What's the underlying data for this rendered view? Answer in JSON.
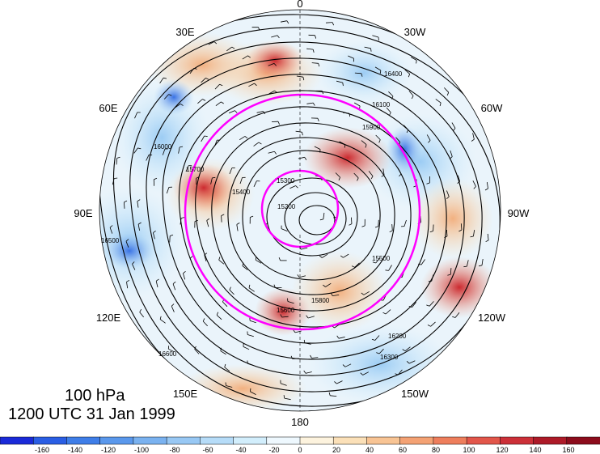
{
  "titles": {
    "level": "100 hPa",
    "valid_time": "1200 UTC 31 Jan 1999"
  },
  "meridian_labels": [
    {
      "id": "lon-0",
      "text": "0",
      "angle": 0
    },
    {
      "id": "lon-30w",
      "text": "30W",
      "angle": 30
    },
    {
      "id": "lon-60w",
      "text": "60W",
      "angle": 60
    },
    {
      "id": "lon-90w",
      "text": "90W",
      "angle": 90
    },
    {
      "id": "lon-120w",
      "text": "120W",
      "angle": 120
    },
    {
      "id": "lon-150w",
      "text": "150W",
      "angle": 150
    },
    {
      "id": "lon-180",
      "text": "180",
      "angle": 180
    },
    {
      "id": "lon-150e",
      "text": "150E",
      "angle": 210
    },
    {
      "id": "lon-120e",
      "text": "120E",
      "angle": 240
    },
    {
      "id": "lon-90e",
      "text": "90E",
      "angle": 270
    },
    {
      "id": "lon-60e",
      "text": "60E",
      "angle": 300
    },
    {
      "id": "lon-30e",
      "text": "30E",
      "angle": 330
    }
  ],
  "contour_labels": [
    "15200",
    "15300",
    "15400",
    "15500",
    "15600",
    "15700",
    "15800",
    "15900",
    "16000",
    "16100",
    "16200",
    "16300",
    "16400",
    "16500",
    "16600"
  ],
  "colorbar": {
    "ticks": [
      "-160",
      "-140",
      "-120",
      "-100",
      "-80",
      "-60",
      "-40",
      "-20",
      "0",
      "20",
      "40",
      "60",
      "80",
      "100",
      "120",
      "140",
      "160"
    ],
    "colors": [
      "#1a2ad8",
      "#2a5ee4",
      "#3f7ee8",
      "#5a98ec",
      "#7ab2f0",
      "#98c8f4",
      "#b6dcf8",
      "#d2eefc",
      "#eef8fe",
      "#fdf3de",
      "#fbe0b8",
      "#f8c494",
      "#f4a274",
      "#ee7e5c",
      "#e2564a",
      "#cc3038",
      "#ad1a28",
      "#8c0c1c"
    ]
  },
  "highlight_color": "#ff00ff"
}
